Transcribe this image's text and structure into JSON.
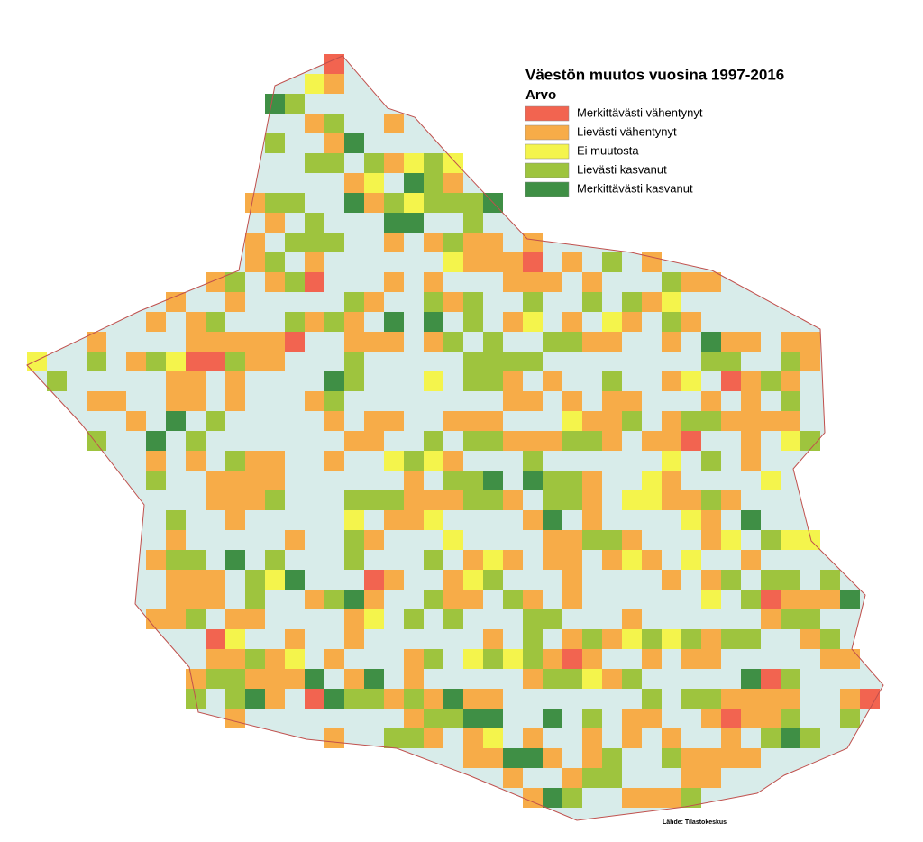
{
  "title": "Väestön muutos vuosina 1997-2016",
  "legend": {
    "title": "Arvo",
    "items": [
      {
        "name": "Merkittävästi vähentynyt",
        "color": "#f26450"
      },
      {
        "name": "Lievästi vähentynyt",
        "color": "#f7ac48"
      },
      {
        "name": "Ei muutosta",
        "color": "#f4f44c"
      },
      {
        "name": "Lievästi kasvanut",
        "color": "#9ec43e"
      },
      {
        "name": "Merkittävästi kasvanut",
        "color": "#3f8f45"
      }
    ]
  },
  "source": "Lähde: Tilastokeskus"
}
